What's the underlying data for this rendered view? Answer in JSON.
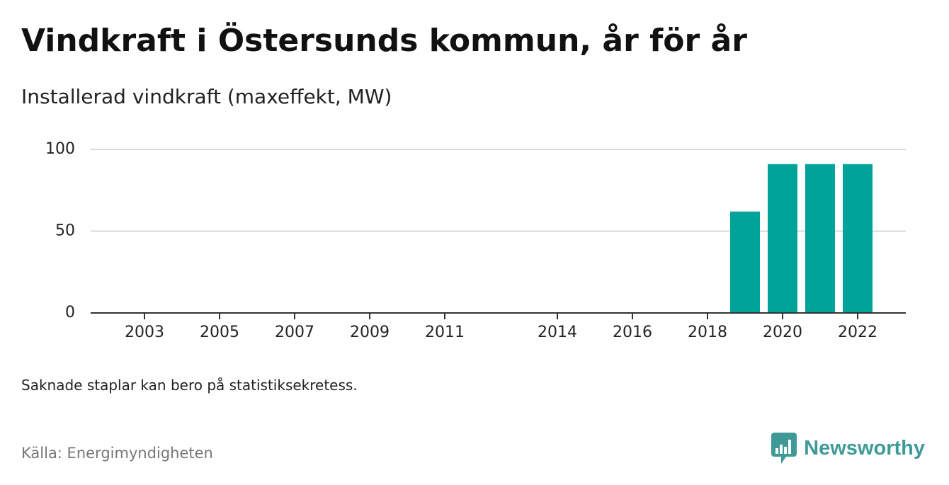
{
  "header": {
    "title": "Vindkraft i Östersunds kommun, år för år",
    "subtitle": "Installerad vindkraft (maxeffekt, MW)"
  },
  "footer": {
    "note": "Saknade staplar kan bero på statistiksekretess.",
    "source": "Källa: Energimyndigheten",
    "brand": "Newsworthy"
  },
  "colors": {
    "bar": "#00a39a",
    "gridline": "#d9d9d9",
    "axis": "#333333",
    "brand": "#3d9a96"
  },
  "chart_data": {
    "type": "bar",
    "title": "Vindkraft i Östersunds kommun, år för år",
    "subtitle": "Installerad vindkraft (maxeffekt, MW)",
    "xlabel": "",
    "ylabel": "",
    "ylim": [
      0,
      100
    ],
    "yticks": [
      0,
      50,
      100
    ],
    "grid": true,
    "legend": "none",
    "categories": [
      "2002",
      "2003",
      "2004",
      "2005",
      "2006",
      "2007",
      "2008",
      "2009",
      "2010",
      "2011",
      "2012",
      "2013",
      "2014",
      "2015",
      "2016",
      "2017",
      "2018",
      "2019",
      "2020",
      "2021",
      "2022",
      "2023"
    ],
    "xtick_labels": [
      "2003",
      "2005",
      "2007",
      "2009",
      "2011",
      "2014",
      "2016",
      "2018",
      "2020",
      "2022"
    ],
    "series": [
      {
        "values": [
          null,
          null,
          null,
          null,
          null,
          null,
          null,
          null,
          null,
          null,
          null,
          null,
          null,
          null,
          null,
          null,
          null,
          62,
          91,
          91,
          91,
          null
        ]
      }
    ]
  }
}
